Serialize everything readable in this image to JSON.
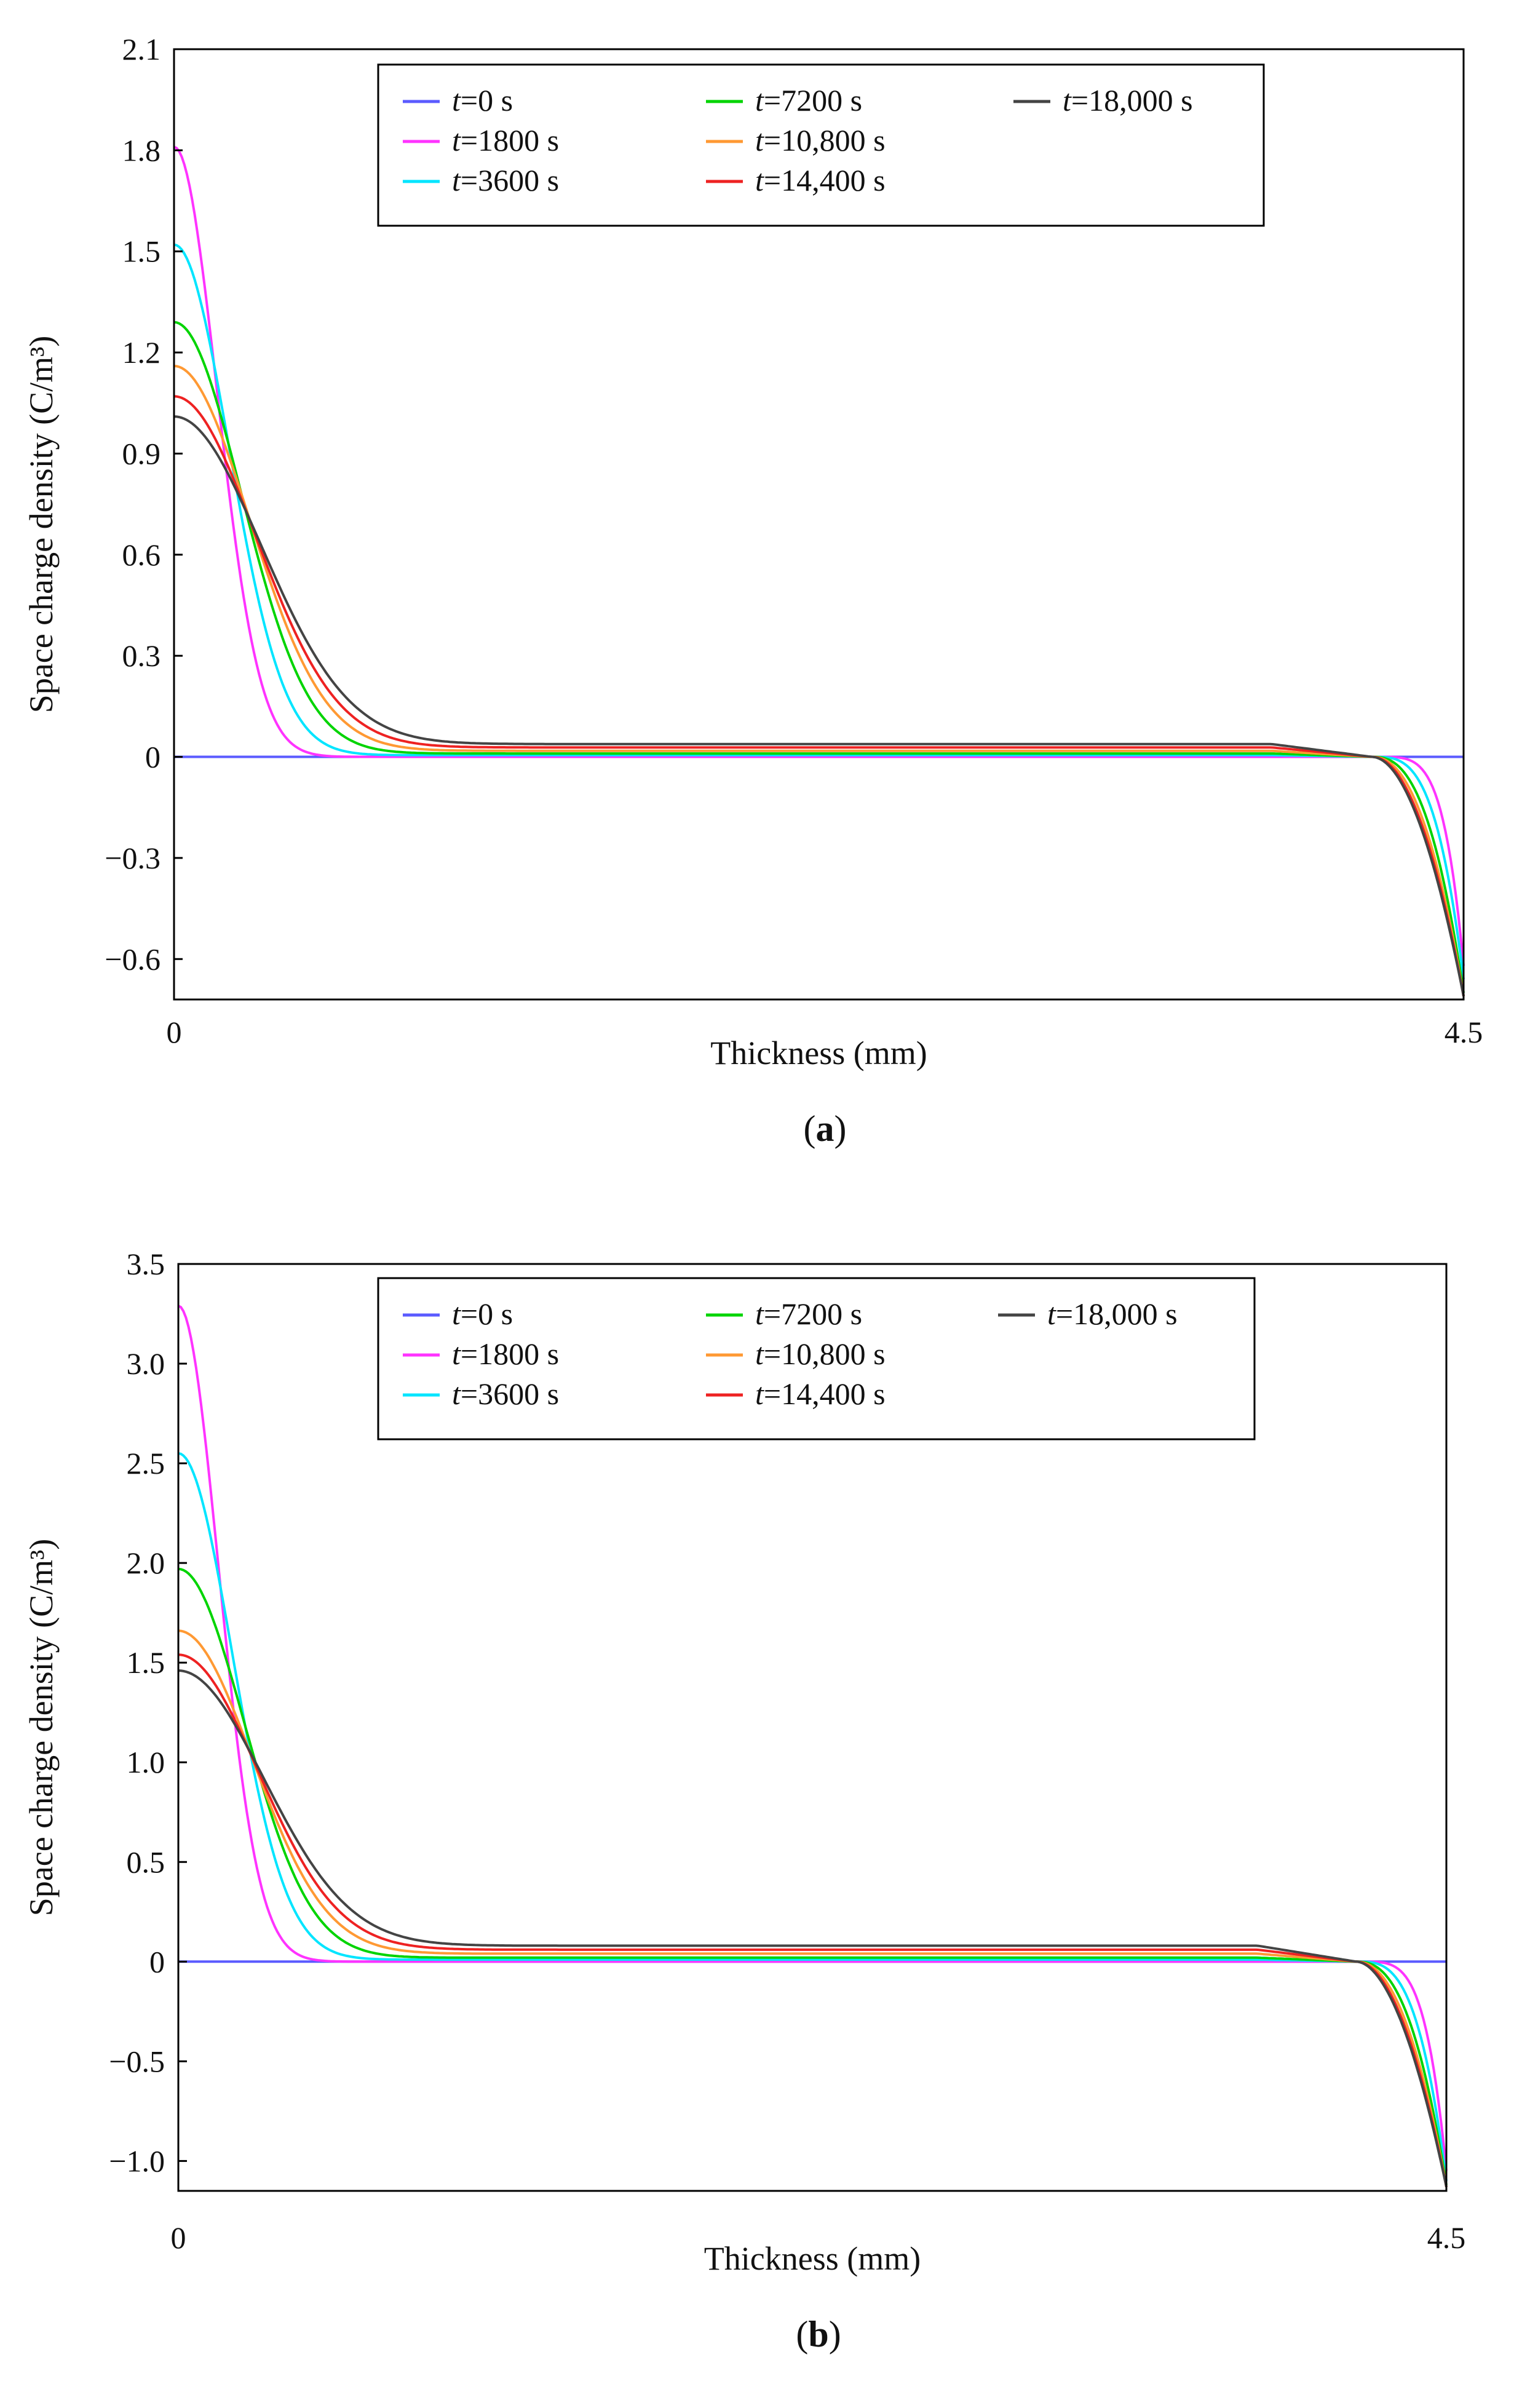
{
  "colors": {
    "t0": "#5b5bff",
    "t1800": "#ff33ff",
    "t3600": "#00e5ff",
    "t7200": "#00d400",
    "t10800": "#ff9933",
    "t14400": "#ee2222",
    "t18000": "#444444",
    "frame": "#000000"
  },
  "legend_prefix": "t",
  "chart_data": [
    {
      "id": "a",
      "type": "line",
      "caption": "(a)",
      "caption_letter": "a",
      "xlabel": "Thickness (mm)",
      "ylabel": "Space charge density (C/m³)",
      "xlim": [
        0,
        4.5
      ],
      "ylim": [
        -0.72,
        2.1
      ],
      "x_ticks": [
        "0",
        "4.5"
      ],
      "y_ticks": [
        2.1,
        1.8,
        1.5,
        1.2,
        0.9,
        0.6,
        0.3,
        0,
        -0.3,
        -0.6
      ],
      "y_tick_labels": [
        "2.1",
        "1.8",
        "1.5",
        "1.2",
        "0.9",
        "0.6",
        "0.3",
        "0",
        "−0.3",
        "−0.6"
      ],
      "series": [
        {
          "key": "t0",
          "name": "=0 s",
          "peak_left": 0.0,
          "plateau": 0.0,
          "width_left": 0.1,
          "min_right": 0.0,
          "width_right": 0.1
        },
        {
          "key": "t1800",
          "name": "=1800 s",
          "peak_left": 1.81,
          "plateau": 0.0,
          "width_left": 0.21,
          "min_right": -0.62,
          "width_right": 0.15
        },
        {
          "key": "t3600",
          "name": "=3600 s",
          "peak_left": 1.52,
          "plateau": 0.005,
          "width_left": 0.27,
          "min_right": -0.66,
          "width_right": 0.21
        },
        {
          "key": "t7200",
          "name": "=7200 s",
          "peak_left": 1.29,
          "plateau": 0.01,
          "width_left": 0.33,
          "min_right": -0.7,
          "width_right": 0.27
        },
        {
          "key": "t10800",
          "name": "=10,800 s",
          "peak_left": 1.16,
          "plateau": 0.018,
          "width_left": 0.37,
          "min_right": -0.71,
          "width_right": 0.31
        },
        {
          "key": "t14400",
          "name": "=14,400 s",
          "peak_left": 1.07,
          "plateau": 0.028,
          "width_left": 0.4,
          "min_right": -0.71,
          "width_right": 0.34
        },
        {
          "key": "t18000",
          "name": "=18,000 s",
          "peak_left": 1.01,
          "plateau": 0.038,
          "width_left": 0.43,
          "min_right": -0.71,
          "width_right": 0.36
        }
      ]
    },
    {
      "id": "b",
      "type": "line",
      "caption": "(b)",
      "caption_letter": "b",
      "xlabel": "Thickness (mm)",
      "ylabel": "Space charge density (C/m³)",
      "xlim": [
        0,
        4.5
      ],
      "ylim": [
        -1.15,
        3.5
      ],
      "x_ticks": [
        "0",
        "4.5"
      ],
      "y_ticks": [
        3.5,
        3.0,
        2.5,
        2.0,
        1.5,
        1.0,
        0.5,
        0,
        -0.5,
        -1.0
      ],
      "y_tick_labels": [
        "3.5",
        "3.0",
        "2.5",
        "2.0",
        "1.5",
        "1.0",
        "0.5",
        "0",
        "−0.5",
        "−1.0"
      ],
      "series": [
        {
          "key": "t0",
          "name": "=0 s",
          "peak_left": 0.0,
          "plateau": 0.0,
          "width_left": 0.1,
          "min_right": 0.0,
          "width_right": 0.1
        },
        {
          "key": "t1800",
          "name": "=1800 s",
          "peak_left": 3.29,
          "plateau": 0.0,
          "width_left": 0.2,
          "min_right": -1.05,
          "width_right": 0.16
        },
        {
          "key": "t3600",
          "name": "=3600 s",
          "peak_left": 2.55,
          "plateau": 0.01,
          "width_left": 0.27,
          "min_right": -1.1,
          "width_right": 0.22
        },
        {
          "key": "t7200",
          "name": "=7200 s",
          "peak_left": 1.97,
          "plateau": 0.02,
          "width_left": 0.33,
          "min_right": -1.12,
          "width_right": 0.28
        },
        {
          "key": "t10800",
          "name": "=10,800 s",
          "peak_left": 1.66,
          "plateau": 0.04,
          "width_left": 0.37,
          "min_right": -1.13,
          "width_right": 0.32
        },
        {
          "key": "t14400",
          "name": "=14,400 s",
          "peak_left": 1.54,
          "plateau": 0.06,
          "width_left": 0.4,
          "min_right": -1.13,
          "width_right": 0.35
        },
        {
          "key": "t18000",
          "name": "=18,000 s",
          "peak_left": 1.46,
          "plateau": 0.08,
          "width_left": 0.43,
          "min_right": -1.13,
          "width_right": 0.37
        }
      ]
    }
  ]
}
